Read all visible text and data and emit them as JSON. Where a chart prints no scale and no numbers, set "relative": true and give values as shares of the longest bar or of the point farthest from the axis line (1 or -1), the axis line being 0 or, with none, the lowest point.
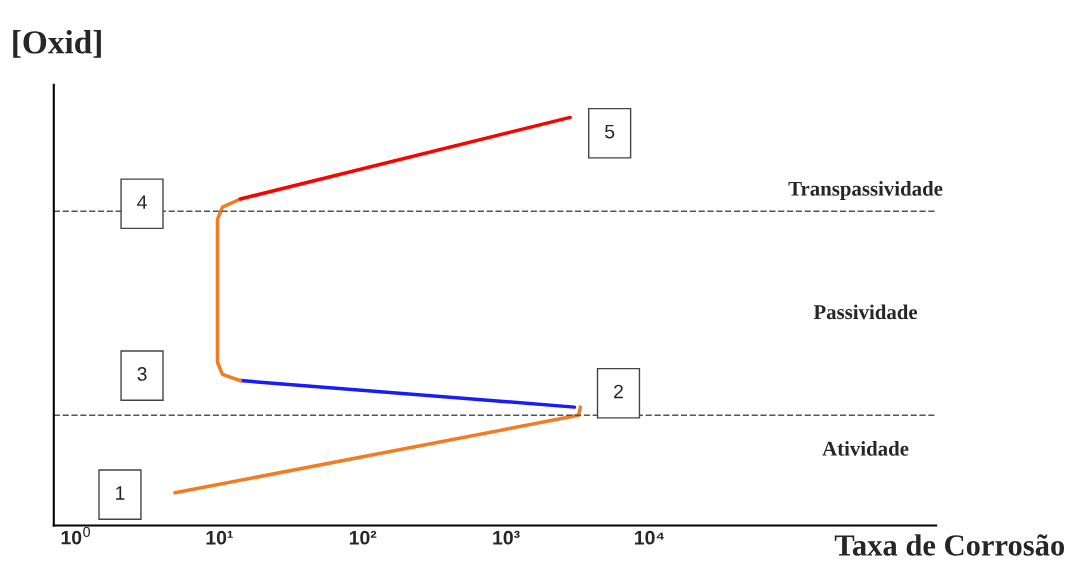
{
  "chart_data": {
    "type": "line",
    "relative": true,
    "log": "x",
    "xlabel": "Taxa de Corrosão",
    "ylabel": "[Oxid]",
    "xlim": [
      0.7,
      1000000
    ],
    "xticks": [
      {
        "value": 1,
        "label": "10$^{0}$"
      },
      {
        "value": 10,
        "label": "10¹"
      },
      {
        "value": 100,
        "label": "10²"
      },
      {
        "value": 1000,
        "label": "10³"
      },
      {
        "value": 10000,
        "label": "10⁴"
      }
    ],
    "grid": false,
    "legend": false,
    "marker": "none",
    "line_style": "solid",
    "series": [
      {
        "color": "#f47b20",
        "x": [
          4.9,
          3200,
          3300
        ],
        "values": [
          0.08,
          0.27,
          0.29
        ]
      },
      {
        "color": "#1a1aff",
        "x": [
          3000,
          14
        ],
        "values": [
          0.29,
          0.355
        ]
      },
      {
        "color": "#f47b20",
        "x": [
          14,
          10.5,
          9.7,
          9.7,
          10.5,
          14
        ],
        "values": [
          0.355,
          0.37,
          0.4,
          0.75,
          0.78,
          0.8
        ]
      },
      {
        "color": "#ff0000",
        "x": [
          14,
          2800
        ],
        "values": [
          0.8,
          1.0
        ]
      }
    ],
    "ref_lines": [
      {
        "axis": "y",
        "value": 0.77,
        "line_style": "dashed",
        "color": "#555555"
      },
      {
        "axis": "y",
        "value": 0.27,
        "line_style": "dashed",
        "color": "#555555"
      }
    ],
    "annotations": [
      "1",
      "2",
      "3",
      "4",
      "5",
      "Transpassividade",
      "Passividade",
      "Atividade"
    ]
  }
}
